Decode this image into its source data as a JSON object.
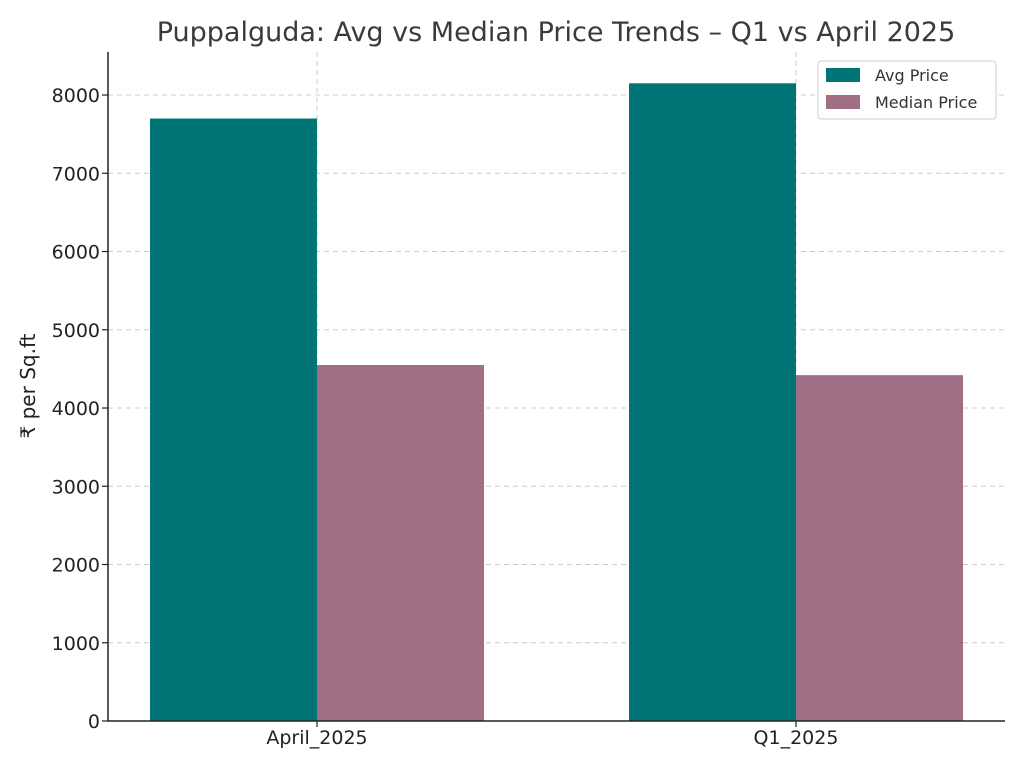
{
  "chart_data": {
    "type": "bar",
    "title": "Puppalguda: Avg vs Median Price Trends – Q1 vs April 2025",
    "xlabel": "",
    "ylabel": "₹ per Sq.ft",
    "categories": [
      "April_2025",
      "Q1_2025"
    ],
    "series": [
      {
        "name": "Avg Price",
        "values": [
          7700,
          8150
        ],
        "color": "#017575"
      },
      {
        "name": "Median Price",
        "values": [
          4550,
          4420
        ],
        "color": "#a06e85"
      }
    ],
    "ylim": [
      0,
      8550
    ],
    "yticks": [
      0,
      1000,
      2000,
      3000,
      4000,
      5000,
      6000,
      7000,
      8000
    ],
    "grid": true,
    "legend_position": "top-right"
  }
}
